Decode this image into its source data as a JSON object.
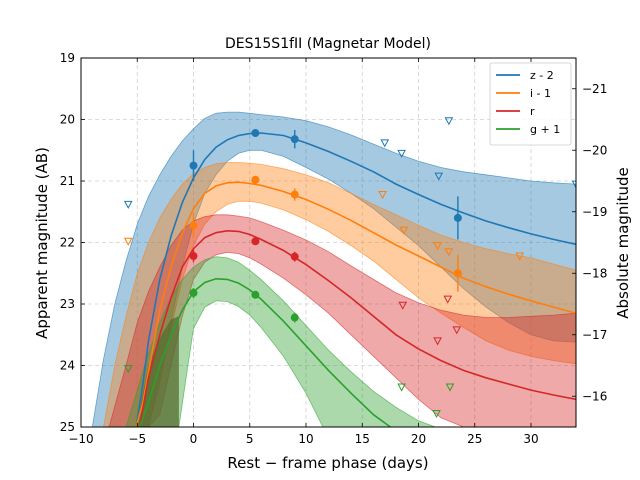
{
  "chart_data": {
    "type": "line",
    "title": "DES15S1fII (Magnetar Model)",
    "xlabel": "Rest − frame phase (days)",
    "ylabel": "Apparent magnitude (AB)",
    "y2label": "Absolute magnitude",
    "xlim": [
      -10,
      34
    ],
    "ylim": [
      25,
      19
    ],
    "y2lim": [
      -15.5,
      -21.5
    ],
    "x_ticks": [
      -10,
      -5,
      0,
      5,
      10,
      15,
      20,
      25,
      30
    ],
    "x_tick_labels": [
      "−10",
      "−5",
      "0",
      "5",
      "10",
      "15",
      "20",
      "25",
      "30"
    ],
    "y_ticks": [
      19,
      20,
      21,
      22,
      23,
      24,
      25
    ],
    "y_tick_labels": [
      "19",
      "20",
      "21",
      "22",
      "23",
      "24",
      "25"
    ],
    "y2_ticks": [
      -21,
      -20,
      -19,
      -18,
      -17,
      -16
    ],
    "y2_tick_labels": [
      "−21",
      "−20",
      "−19",
      "−18",
      "−17",
      "−16"
    ],
    "grid": true,
    "legend_position": "top-right",
    "series": [
      {
        "name": "z - 2",
        "color": "#1f77b4",
        "model": {
          "x": [
            -5.1,
            -4.5,
            -4,
            -3,
            -2,
            -1,
            0,
            1,
            2,
            3,
            4,
            5,
            6,
            8,
            10,
            12,
            14,
            16,
            18,
            20,
            22,
            24,
            26,
            28,
            30,
            32,
            34
          ],
          "y": [
            25,
            24.3,
            23.6,
            22.6,
            21.9,
            21.35,
            20.95,
            20.65,
            20.45,
            20.33,
            20.26,
            20.23,
            20.22,
            20.26,
            20.38,
            20.52,
            20.68,
            20.85,
            21.05,
            21.22,
            21.38,
            21.52,
            21.65,
            21.76,
            21.86,
            21.95,
            22.03
          ]
        },
        "band_upper": {
          "x": [
            -9,
            -8,
            -7,
            -6,
            -5,
            -4,
            -3,
            -2,
            -1,
            0,
            1,
            2,
            3,
            4,
            5,
            6,
            8,
            10,
            12,
            14,
            16,
            18,
            20,
            22,
            24,
            26,
            28,
            30,
            32,
            34
          ],
          "y": [
            25,
            23.9,
            23.0,
            22.3,
            21.7,
            21.25,
            20.9,
            20.6,
            20.35,
            20.15,
            19.98,
            19.9,
            19.88,
            19.88,
            19.9,
            19.92,
            19.96,
            20.02,
            20.12,
            20.25,
            20.4,
            20.55,
            20.68,
            20.78,
            20.85,
            20.9,
            20.95,
            21.0,
            21.03,
            21.05
          ]
        },
        "band_lower": {
          "x": [
            -5,
            -4,
            -3,
            -2,
            -1,
            0,
            1,
            2,
            3,
            4,
            5,
            6,
            8,
            10,
            12,
            14,
            16,
            18,
            20,
            22,
            24,
            26,
            28,
            30,
            32,
            34
          ],
          "y": [
            25,
            25,
            24.2,
            23.3,
            22.4,
            21.7,
            21.2,
            20.9,
            20.68,
            20.55,
            20.5,
            20.5,
            20.6,
            20.78,
            20.97,
            21.2,
            21.45,
            21.75,
            22.05,
            22.4,
            22.75,
            23.05,
            23.3,
            23.5,
            23.6,
            23.62
          ]
        },
        "points": [
          {
            "x": 0,
            "y": 20.75,
            "err": 0.25
          },
          {
            "x": 5.5,
            "y": 20.22,
            "err": 0.05
          },
          {
            "x": 9,
            "y": 20.32,
            "err": 0.15
          },
          {
            "x": 23.5,
            "y": 21.6,
            "err": 0.35
          }
        ],
        "upper_limits": [
          {
            "x": -5.8,
            "y": 21.38
          },
          {
            "x": 17,
            "y": 20.38
          },
          {
            "x": 18.5,
            "y": 20.55
          },
          {
            "x": 21.8,
            "y": 20.92
          },
          {
            "x": 22.7,
            "y": 20.02
          },
          {
            "x": 34,
            "y": 21.05
          }
        ]
      },
      {
        "name": "i - 1",
        "color": "#ff7f0e",
        "model": {
          "x": [
            -5.1,
            -4.5,
            -4,
            -3,
            -2,
            -1,
            0,
            1,
            2,
            3,
            4,
            5,
            6,
            8,
            10,
            12,
            14,
            16,
            18,
            20,
            22,
            24,
            26,
            28,
            30,
            32,
            34
          ],
          "y": [
            25,
            24.6,
            24.1,
            23.1,
            22.4,
            21.85,
            21.45,
            21.2,
            21.08,
            21.03,
            21.02,
            21.04,
            21.07,
            21.17,
            21.3,
            21.46,
            21.64,
            21.84,
            22.04,
            22.22,
            22.4,
            22.58,
            22.72,
            22.84,
            22.95,
            23.05,
            23.15
          ]
        },
        "band_upper": {
          "x": [
            -8,
            -7,
            -6,
            -5,
            -4,
            -3,
            -2,
            -1,
            0,
            1,
            2,
            3,
            4,
            5,
            6,
            8,
            10,
            12,
            14,
            16,
            18,
            20,
            22,
            24,
            26,
            28,
            30,
            32,
            34
          ],
          "y": [
            25,
            24.0,
            23.2,
            22.5,
            22.0,
            21.6,
            21.3,
            21.05,
            20.88,
            20.78,
            20.72,
            20.7,
            20.7,
            20.71,
            20.73,
            20.8,
            20.9,
            21.03,
            21.2,
            21.38,
            21.55,
            21.72,
            21.88,
            22.0,
            22.1,
            22.18,
            22.25,
            22.35,
            22.45
          ]
        },
        "band_lower": {
          "x": [
            -5,
            -4,
            -3,
            -2,
            -1,
            0,
            1,
            2,
            3,
            4,
            5,
            6,
            8,
            10,
            12,
            14,
            16,
            18,
            20,
            22,
            24,
            26,
            28,
            30,
            32,
            34
          ],
          "y": [
            25,
            25,
            24.3,
            23.4,
            22.6,
            22.05,
            21.7,
            21.5,
            21.38,
            21.33,
            21.33,
            21.36,
            21.47,
            21.63,
            21.82,
            22.05,
            22.3,
            22.6,
            22.9,
            23.15,
            23.38,
            23.6,
            23.75,
            23.85,
            23.92,
            23.97
          ]
        },
        "points": [
          {
            "x": 0,
            "y": 21.72,
            "err": 0.2
          },
          {
            "x": 5.5,
            "y": 20.98,
            "err": 0.05
          },
          {
            "x": 9,
            "y": 21.22,
            "err": 0.1
          },
          {
            "x": 23.5,
            "y": 22.5,
            "err": 0.3
          }
        ],
        "upper_limits": [
          {
            "x": -5.8,
            "y": 21.98
          },
          {
            "x": 16.8,
            "y": 21.22
          },
          {
            "x": 18.7,
            "y": 21.8
          },
          {
            "x": 21.7,
            "y": 22.05
          },
          {
            "x": 22.7,
            "y": 22.15
          },
          {
            "x": 29,
            "y": 22.22
          }
        ]
      },
      {
        "name": "r",
        "color": "#d62728",
        "model": {
          "x": [
            -4.8,
            -4,
            -3,
            -2,
            -1,
            0,
            1,
            2,
            3,
            4,
            5,
            6,
            8,
            10,
            12,
            14,
            16,
            18,
            20,
            22,
            24,
            26,
            28,
            30,
            32,
            34
          ],
          "y": [
            25,
            24.2,
            23.5,
            22.9,
            22.4,
            22.1,
            21.92,
            21.84,
            21.81,
            21.82,
            21.87,
            21.95,
            22.13,
            22.36,
            22.62,
            22.9,
            23.2,
            23.5,
            23.73,
            23.92,
            24.08,
            24.2,
            24.3,
            24.4,
            24.48,
            24.55
          ]
        },
        "band_upper": {
          "x": [
            -7.5,
            -6,
            -5,
            -4,
            -3,
            -2,
            -1,
            0,
            1,
            2,
            3,
            4,
            5,
            6,
            8,
            10,
            12,
            14,
            16,
            18,
            20,
            22,
            24,
            26,
            28,
            30,
            32,
            34
          ],
          "y": [
            25,
            24.0,
            23.3,
            22.8,
            22.4,
            22.05,
            21.8,
            21.65,
            21.58,
            21.55,
            21.55,
            21.57,
            21.6,
            21.66,
            21.8,
            21.96,
            22.15,
            22.38,
            22.6,
            22.82,
            22.98,
            23.1,
            23.18,
            23.22,
            23.22,
            23.2,
            23.18,
            23.15
          ]
        },
        "band_lower": {
          "x": [
            -4,
            -3,
            -2,
            -1,
            0,
            1,
            2,
            3,
            4,
            5,
            6,
            8,
            10,
            12,
            14,
            16,
            18,
            20,
            22,
            24,
            26,
            28,
            30,
            32,
            34
          ],
          "y": [
            25,
            24.8,
            24.0,
            23.2,
            22.6,
            22.32,
            22.2,
            22.16,
            22.18,
            22.25,
            22.35,
            22.58,
            22.85,
            23.15,
            23.5,
            23.85,
            24.2,
            24.55,
            24.85,
            25.0,
            25.0,
            25.0,
            25.0,
            25.0,
            25.0
          ]
        },
        "points": [
          {
            "x": 0,
            "y": 22.22,
            "err": 0.1
          },
          {
            "x": 5.5,
            "y": 21.98,
            "err": 0.05
          },
          {
            "x": 9,
            "y": 22.23,
            "err": 0.08
          }
        ],
        "upper_limits": [
          {
            "x": 18.6,
            "y": 23.02
          },
          {
            "x": 21.7,
            "y": 23.6
          },
          {
            "x": 22.6,
            "y": 22.92
          },
          {
            "x": 23.4,
            "y": 23.42
          }
        ]
      },
      {
        "name": "g + 1",
        "color": "#2ca02c",
        "model": {
          "x": [
            -4.8,
            -4,
            -3,
            -2,
            -1,
            0,
            1,
            2,
            3,
            4,
            5,
            6,
            8,
            10,
            12,
            14,
            16,
            17.5
          ],
          "y": [
            25,
            24.6,
            24.0,
            23.5,
            23.1,
            22.8,
            22.65,
            22.59,
            22.6,
            22.66,
            22.77,
            22.92,
            23.28,
            23.68,
            24.08,
            24.45,
            24.8,
            25.0
          ]
        },
        "band_upper": {
          "x": [
            -6,
            -5,
            -4,
            -3,
            -2,
            -1,
            0,
            1,
            2,
            3,
            4,
            5,
            6,
            8,
            10,
            12,
            14,
            16,
            18,
            20,
            21.5
          ],
          "y": [
            25,
            24.4,
            23.8,
            23.3,
            22.9,
            22.6,
            22.4,
            22.28,
            22.23,
            22.25,
            22.32,
            22.45,
            22.6,
            22.95,
            23.35,
            23.75,
            24.1,
            24.42,
            24.68,
            24.9,
            25.0
          ]
        },
        "band_lower": {
          "x": [
            -1.3,
            -0.5,
            0,
            1,
            2,
            3,
            4,
            5,
            6,
            8,
            10,
            11.5
          ],
          "y": [
            25,
            24.0,
            23.4,
            23.05,
            22.95,
            22.96,
            23.04,
            23.18,
            23.38,
            23.85,
            24.45,
            25.0
          ]
        },
        "dark_band": {
          "x": [
            -5.1,
            -4,
            -3,
            -2,
            -1.3,
            -1.3,
            -2,
            -3,
            -4
          ],
          "y": [
            25,
            24.0,
            23.55,
            23.25,
            23.2,
            25,
            25,
            25,
            25
          ]
        },
        "points": [
          {
            "x": 0,
            "y": 22.82,
            "err": 0.08
          },
          {
            "x": 5.5,
            "y": 22.85,
            "err": 0.05
          },
          {
            "x": 9,
            "y": 23.22,
            "err": 0.08
          }
        ],
        "upper_limits": [
          {
            "x": -5.8,
            "y": 24.05
          },
          {
            "x": 18.5,
            "y": 24.35
          },
          {
            "x": 21.6,
            "y": 24.78
          },
          {
            "x": 22.8,
            "y": 24.35
          }
        ]
      }
    ]
  }
}
